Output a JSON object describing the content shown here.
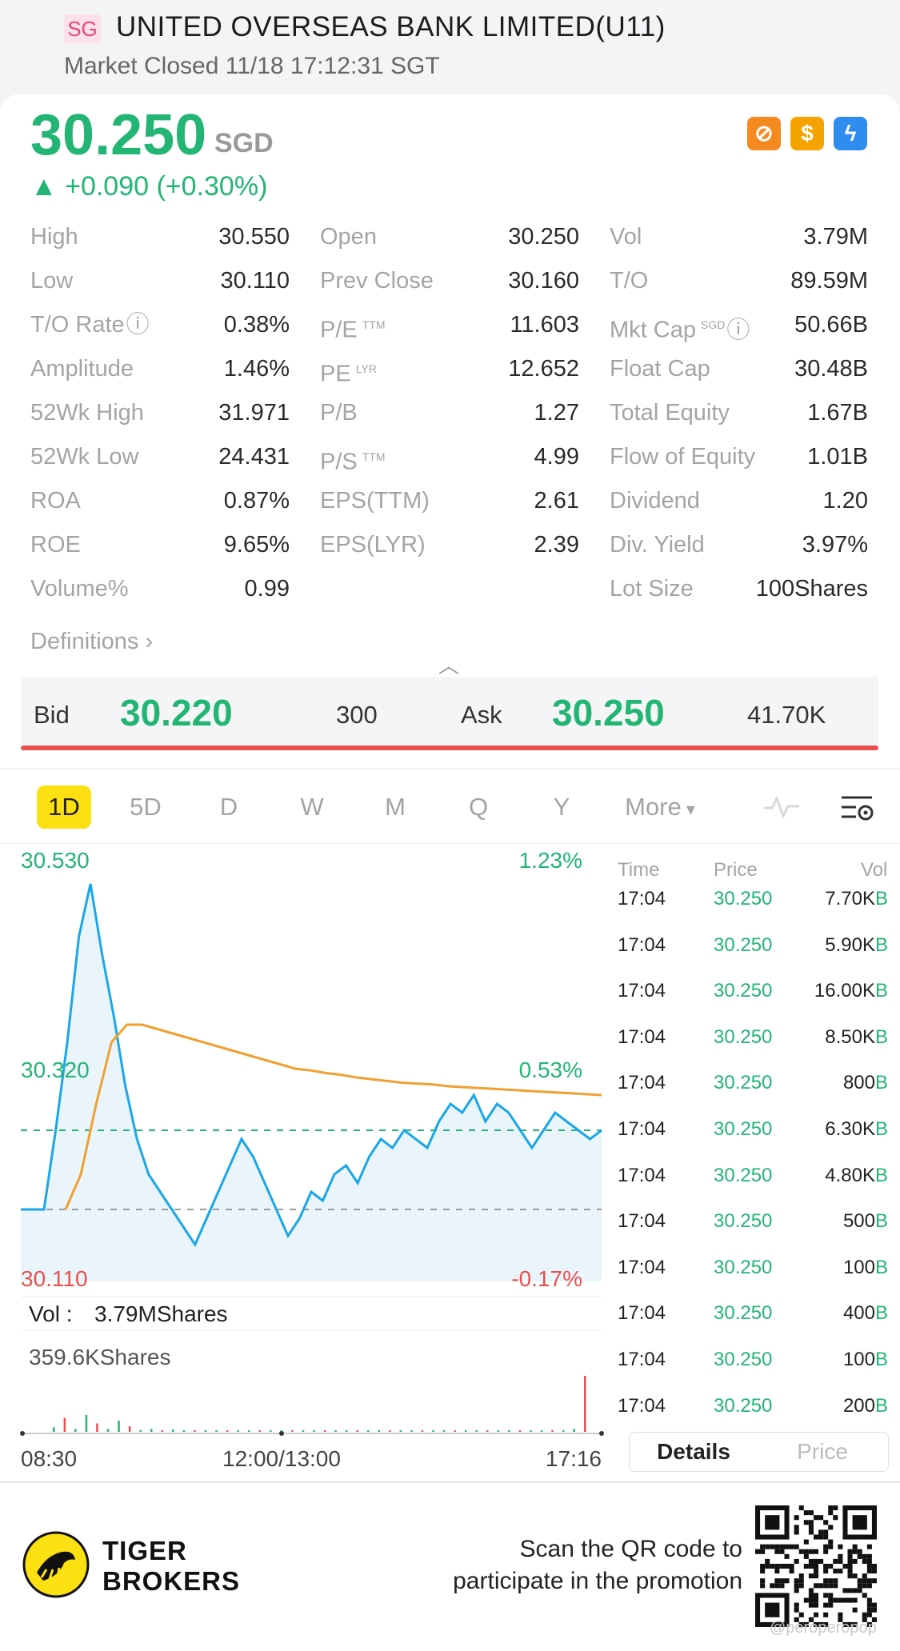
{
  "header": {
    "market_badge": "SG",
    "title": "UNITED OVERSEAS BANK LIMITED(U11)",
    "status": "Market Closed 11/18 17:12:31 SGT"
  },
  "quote": {
    "price": "30.250",
    "currency": "SGD",
    "change": "▲ +0.090 (+0.30%)",
    "up_color": "#22b573",
    "down_color": "#e94f4f",
    "tags": [
      "no-short-icon",
      "dollar-icon",
      "lightning-icon"
    ]
  },
  "stats": [
    [
      {
        "label": "High",
        "value": "30.550"
      },
      {
        "label": "Open",
        "value": "30.250"
      },
      {
        "label": "Vol",
        "value": "3.79M"
      }
    ],
    [
      {
        "label": "Low",
        "value": "30.110"
      },
      {
        "label": "Prev Close",
        "value": "30.160"
      },
      {
        "label": "T/O",
        "value": "89.59M"
      }
    ],
    [
      {
        "label": "T/O Rate",
        "value": "0.38%"
      },
      {
        "label": "P/E",
        "value": "11.603"
      },
      {
        "label": "Mkt Cap",
        "value": "50.66B"
      }
    ],
    [
      {
        "label": "Amplitude",
        "value": "1.46%"
      },
      {
        "label": "PE",
        "value": "12.652"
      },
      {
        "label": "Float Cap",
        "value": "30.48B"
      }
    ],
    [
      {
        "label": "52Wk High",
        "value": "31.971"
      },
      {
        "label": "P/B",
        "value": "1.27"
      },
      {
        "label": "Total Equity",
        "value": "1.67B"
      }
    ],
    [
      {
        "label": "52Wk Low",
        "value": "24.431"
      },
      {
        "label": "P/S",
        "value": "4.99"
      },
      {
        "label": "Flow of Equity",
        "value": "1.01B"
      }
    ],
    [
      {
        "label": "ROA",
        "value": "0.87%"
      },
      {
        "label": "EPS(TTM)",
        "value": "2.61"
      },
      {
        "label": "Dividend",
        "value": "1.20"
      }
    ],
    [
      {
        "label": "ROE",
        "value": "9.65%"
      },
      {
        "label": "EPS(LYR)",
        "value": "2.39"
      },
      {
        "label": "Div. Yield",
        "value": "3.97%"
      }
    ],
    [
      {
        "label": "Volume%",
        "value": "0.99"
      },
      {
        "label": "",
        "value": ""
      },
      {
        "label": "Lot Size",
        "value": "100Shares"
      }
    ]
  ],
  "superscripts": {
    "pe_ttm": "TTM",
    "pe_lyr": "LYR",
    "ps_ttm": "TTM",
    "mktcap": "SGD"
  },
  "definitions": "Definitions",
  "bidask": {
    "bid_label": "Bid",
    "bid_price": "30.220",
    "bid_size": "300",
    "ask_label": "Ask",
    "ask_price": "30.250",
    "ask_size": "41.70K"
  },
  "tabs": [
    "1D",
    "5D",
    "D",
    "W",
    "M",
    "Q",
    "Y",
    "More"
  ],
  "chart_data": {
    "type": "line",
    "y_left_labels": [
      "30.530",
      "30.320",
      "30.110"
    ],
    "y_right_labels": [
      "1.23%",
      "0.53%",
      "-0.17%"
    ],
    "x_labels": [
      "08:30",
      "12:00/13:00",
      "17:16"
    ],
    "prev_close": 30.16,
    "current": 30.25,
    "ylim": [
      30.11,
      30.53
    ],
    "series": [
      {
        "values": [
          30.16,
          30.16,
          30.16,
          30.25,
          30.35,
          30.47,
          30.53,
          30.45,
          30.38,
          30.3,
          30.24,
          30.2,
          30.18,
          30.16,
          30.14,
          30.12,
          30.15,
          30.18,
          30.21,
          30.24,
          30.22,
          30.19,
          30.16,
          30.13,
          30.15,
          30.18,
          30.17,
          30.2,
          30.21,
          30.19,
          30.22,
          30.24,
          30.23,
          30.25,
          30.24,
          30.23,
          30.26,
          30.28,
          30.27,
          30.29,
          30.26,
          30.28,
          30.27,
          30.25,
          30.23,
          30.25,
          30.27,
          30.26,
          30.25,
          30.24,
          30.25
        ]
      },
      {
        "values": [
          30.16,
          30.2,
          30.28,
          30.35,
          30.37,
          30.37,
          30.365,
          30.36,
          30.355,
          30.35,
          30.345,
          30.34,
          30.335,
          30.33,
          30.325,
          30.32,
          30.318,
          30.315,
          30.313,
          30.31,
          30.308,
          30.306,
          30.304,
          30.303,
          30.302,
          30.3,
          30.299,
          30.298,
          30.297,
          30.296,
          30.295,
          30.294,
          30.293,
          30.292,
          30.291,
          30.29
        ]
      }
    ]
  },
  "volume": {
    "label_prefix": "Vol :",
    "total": "3.79MShares",
    "max_label": "359.6KShares",
    "bars": [
      0.08,
      0.25,
      0.05,
      0.3,
      0.15,
      0.05,
      0.2,
      0.1,
      0.03,
      0.05,
      0.02,
      0.04,
      0.02,
      0.03,
      0.02,
      0.01,
      0.02,
      0.03,
      0.02,
      0.01,
      0.02,
      0.02,
      0.03,
      0.01,
      0.02,
      0.01,
      0.02,
      0.02,
      0.01,
      0.03,
      0.02,
      0.01,
      0.02,
      0.02,
      0.01,
      0.02,
      0.03,
      0.01,
      0.02,
      0.02,
      0.01,
      0.02,
      0.03,
      0.02,
      0.01,
      0.02,
      0.03,
      0.02,
      0.05,
      1.0
    ]
  },
  "trades": {
    "headers": [
      "Time",
      "Price",
      "Vol"
    ],
    "rows": [
      {
        "time": "17:04",
        "price": "30.250",
        "vol": "7.70K"
      },
      {
        "time": "17:04",
        "price": "30.250",
        "vol": "5.90K"
      },
      {
        "time": "17:04",
        "price": "30.250",
        "vol": "16.00K"
      },
      {
        "time": "17:04",
        "price": "30.250",
        "vol": "8.50K"
      },
      {
        "time": "17:04",
        "price": "30.250",
        "vol": "800"
      },
      {
        "time": "17:04",
        "price": "30.250",
        "vol": "6.30K"
      },
      {
        "time": "17:04",
        "price": "30.250",
        "vol": "4.80K"
      },
      {
        "time": "17:04",
        "price": "30.250",
        "vol": "500"
      },
      {
        "time": "17:04",
        "price": "30.250",
        "vol": "100"
      },
      {
        "time": "17:04",
        "price": "30.250",
        "vol": "400"
      },
      {
        "time": "17:04",
        "price": "30.250",
        "vol": "100"
      },
      {
        "time": "17:04",
        "price": "30.250",
        "vol": "200"
      }
    ],
    "side_marker": "B",
    "details_label": "Details",
    "price_label": "Price"
  },
  "footer": {
    "brand_line1": "TIGER",
    "brand_line2": "BROKERS",
    "promo_line1": "Scan the QR code to",
    "promo_line2": "participate in the promotion",
    "watermark": "@peroperopop"
  }
}
